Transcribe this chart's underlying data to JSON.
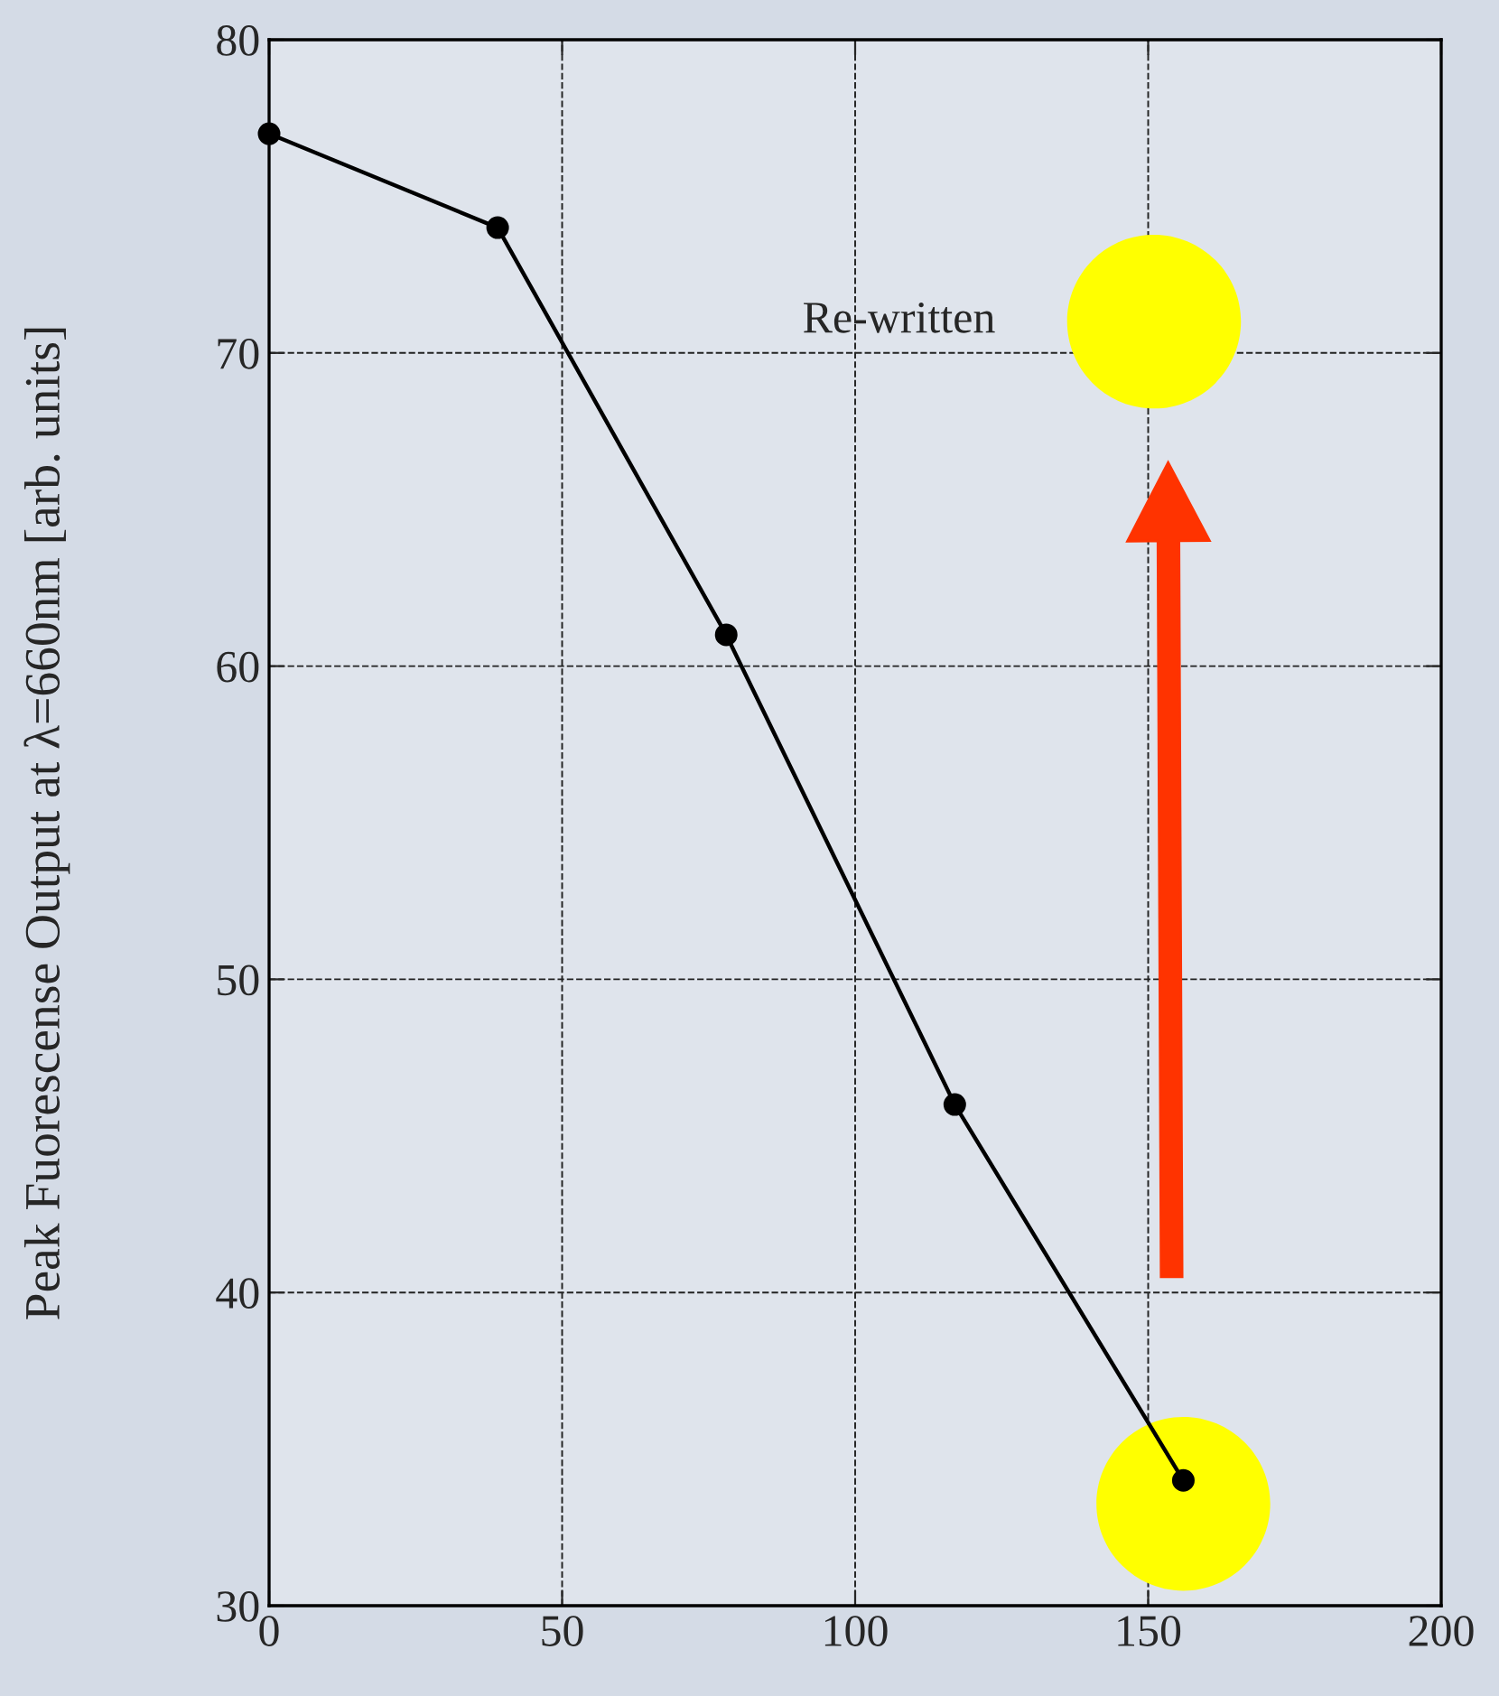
{
  "chart_data": {
    "type": "line",
    "ylabel": "Peak Fuorescense Output at λ=660nm [arb. units]",
    "x": [
      0,
      39,
      78,
      117,
      156
    ],
    "series": [
      {
        "color": "#000000",
        "values": [
          77,
          74,
          61,
          46,
          34
        ]
      }
    ],
    "xlim": [
      0,
      200
    ],
    "xticks": [
      0,
      50,
      100,
      150,
      200
    ],
    "ylim": [
      30,
      80
    ],
    "yticks": [
      30,
      40,
      50,
      60,
      70,
      80
    ],
    "grid": true,
    "marker": "circle",
    "line_style": "solid",
    "annotations": [
      "Re-written"
    ]
  }
}
